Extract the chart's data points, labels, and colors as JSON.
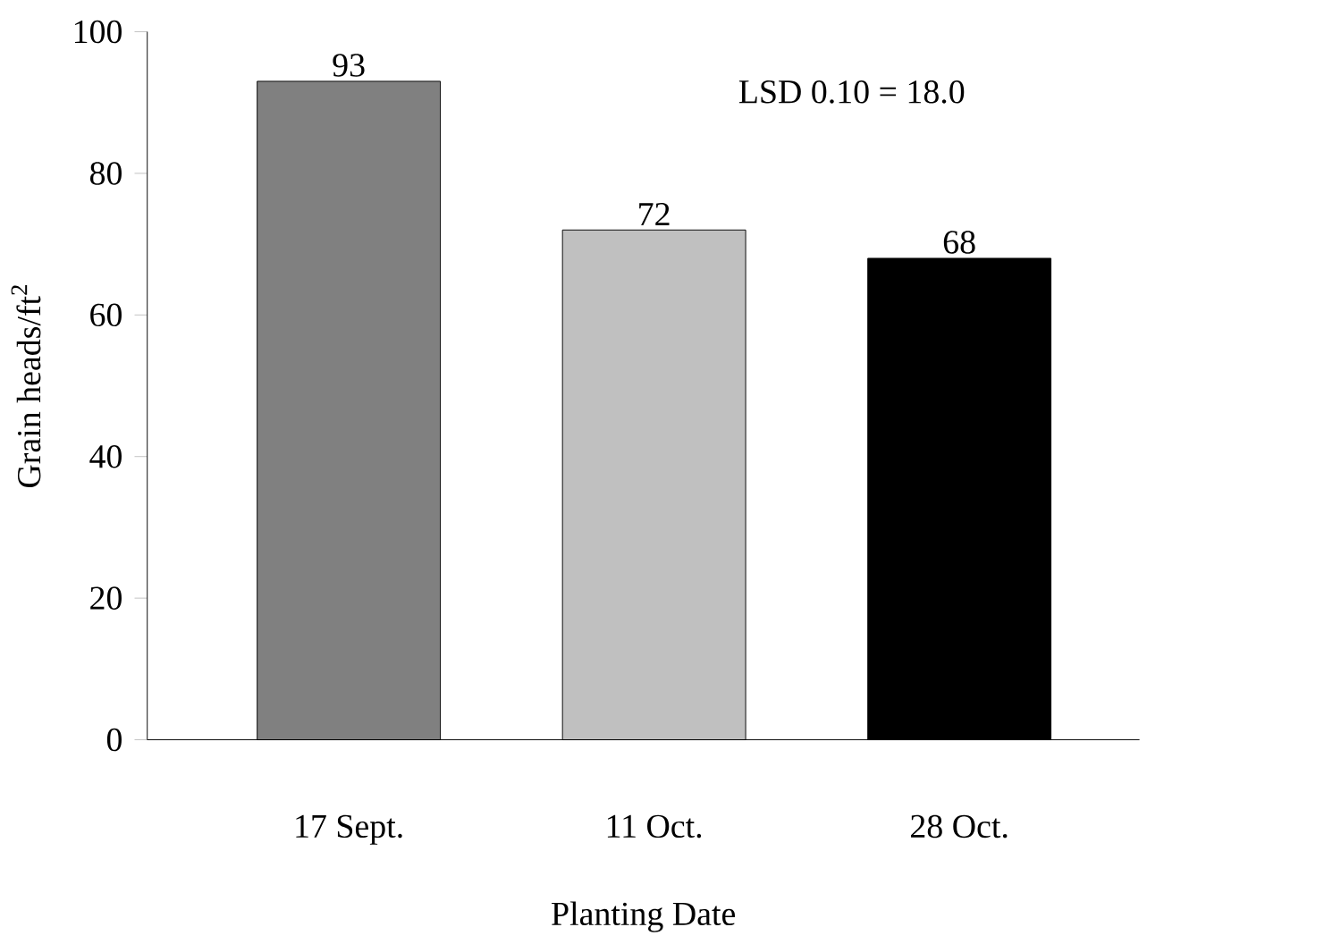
{
  "chart_data": {
    "type": "bar",
    "categories": [
      "17 Sept.",
      "11 Oct.",
      "28 Oct."
    ],
    "values": [
      93,
      72,
      68
    ],
    "colors": [
      "#808080",
      "#c0c0c0",
      "#000000"
    ],
    "xlabel": "Planting Date",
    "ylabel": "Grain heads/ft$^{2}$",
    "ylim": [
      0,
      100
    ],
    "yticks": [
      0,
      20,
      40,
      60,
      80,
      100
    ],
    "data_labels": true,
    "annotations": [
      "LSD 0.10 = 18.0"
    ]
  }
}
